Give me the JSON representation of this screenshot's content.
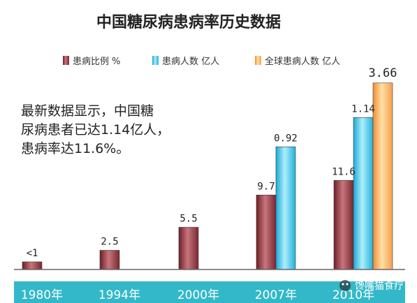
{
  "chart_data": {
    "type": "bar",
    "title": "中国糖尿病患病率历史数据",
    "categories": [
      "1980年",
      "1994年",
      "2000年",
      "2007年",
      "2010年"
    ],
    "series": [
      {
        "name": "患病比例 %",
        "values": [
          1.0,
          2.5,
          5.5,
          9.7,
          11.6
        ],
        "data_labels": [
          "<1",
          "2.5",
          "5.5",
          "9.7",
          "11.6"
        ],
        "color": "#9b3a42"
      },
      {
        "name": "患病人数 亿人",
        "values": [
          null,
          null,
          null,
          0.92,
          1.14
        ],
        "data_labels": [
          "",
          "",
          "",
          "0.92",
          "1.14"
        ],
        "color": "#35c4e8"
      },
      {
        "name": "全球患病人数 亿人",
        "values": [
          null,
          null,
          null,
          null,
          3.66
        ],
        "data_labels": [
          "",
          "",
          "",
          "",
          "3.66"
        ],
        "color": "#f5a64a"
      }
    ],
    "annotation": [
      "最新数据显示，中国糖",
      "尿病患者已达1.14亿人，",
      "患病率达11.6%。"
    ],
    "legend_position": "top",
    "grid": false
  },
  "watermark": "馋嘴猫食疗",
  "colors": {
    "category_band": "#33b8c9",
    "baseline": "#666666"
  }
}
